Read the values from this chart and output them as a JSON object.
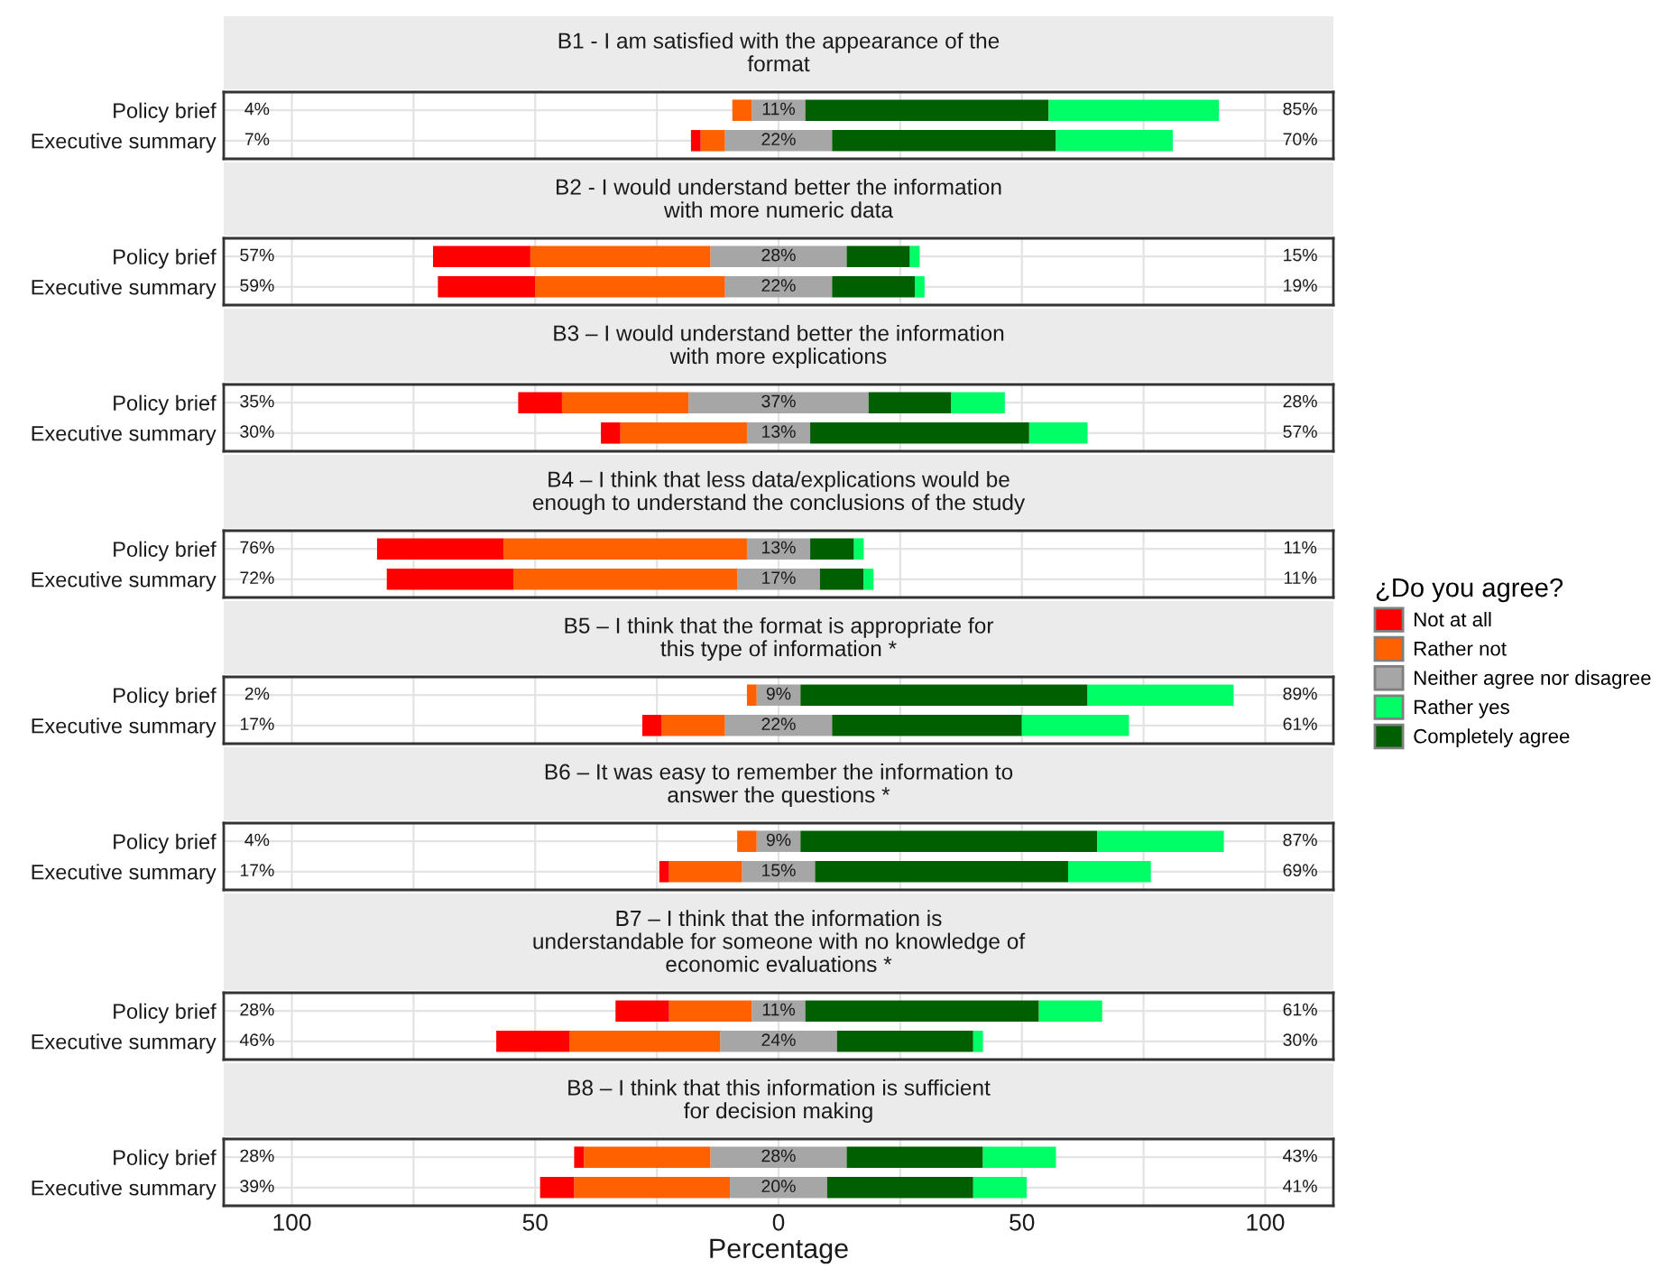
{
  "chart_data": [
    {
      "type": "bar",
      "orientation": "horizontal",
      "stacked": true,
      "title": "B1 - I am satisfied with the appearance of the\nformat",
      "categories": [
        "Policy brief",
        "Executive summary"
      ],
      "series": [
        {
          "color": "#a6a6a6",
          "values": [
            -5.5,
            -11
          ]
        },
        {
          "color": "#ff6000",
          "values": [
            -4,
            -5
          ]
        },
        {
          "color": "#ff0000",
          "values": [
            0,
            -2
          ]
        },
        {
          "color": "#a6a6a6",
          "values": [
            5.5,
            11
          ]
        },
        {
          "color": "#005f00",
          "values": [
            50,
            46
          ]
        },
        {
          "color": "#00ff66",
          "values": [
            35,
            24
          ]
        }
      ],
      "annotations": [
        "4%",
        "11%",
        "85%",
        "7%",
        "22%",
        "70%"
      ],
      "xlim": [
        -114,
        114
      ],
      "xticks": [
        -100,
        -75,
        -50,
        -25,
        0,
        25,
        50,
        75,
        100
      ],
      "tick_labels": "y",
      "grid": true
    },
    {
      "type": "bar",
      "orientation": "horizontal",
      "stacked": true,
      "title": "B2 - I would understand better the information\nwith more numeric data",
      "categories": [
        "Policy brief",
        "Executive summary"
      ],
      "series": [
        {
          "color": "#a6a6a6",
          "values": [
            -14,
            -11
          ]
        },
        {
          "color": "#ff6000",
          "values": [
            -37,
            -39
          ]
        },
        {
          "color": "#ff0000",
          "values": [
            -20,
            -20
          ]
        },
        {
          "color": "#a6a6a6",
          "values": [
            14,
            11
          ]
        },
        {
          "color": "#005f00",
          "values": [
            13,
            17
          ]
        },
        {
          "color": "#00ff66",
          "values": [
            2,
            2
          ]
        }
      ],
      "annotations": [
        "57%",
        "28%",
        "15%",
        "59%",
        "22%",
        "19%"
      ],
      "xlim": [
        -114,
        114
      ],
      "xticks": [
        -100,
        -75,
        -50,
        -25,
        0,
        25,
        50,
        75,
        100
      ],
      "tick_labels": "y",
      "grid": true
    },
    {
      "type": "bar",
      "orientation": "horizontal",
      "stacked": true,
      "title": "B3 – I would understand better the information\nwith more explications",
      "categories": [
        "Policy brief",
        "Executive summary"
      ],
      "series": [
        {
          "color": "#a6a6a6",
          "values": [
            -18.5,
            -6.5
          ]
        },
        {
          "color": "#ff6000",
          "values": [
            -26,
            -26
          ]
        },
        {
          "color": "#ff0000",
          "values": [
            -9,
            -4
          ]
        },
        {
          "color": "#a6a6a6",
          "values": [
            18.5,
            6.5
          ]
        },
        {
          "color": "#005f00",
          "values": [
            17,
            45
          ]
        },
        {
          "color": "#00ff66",
          "values": [
            11,
            12
          ]
        }
      ],
      "annotations": [
        "35%",
        "37%",
        "28%",
        "30%",
        "13%",
        "57%"
      ],
      "xlim": [
        -114,
        114
      ],
      "xticks": [
        -100,
        -75,
        -50,
        -25,
        0,
        25,
        50,
        75,
        100
      ],
      "tick_labels": "y",
      "grid": true
    },
    {
      "type": "bar",
      "orientation": "horizontal",
      "stacked": true,
      "title": "B4 – I think that less data/explications would be\nenough to understand the conclusions of the study",
      "categories": [
        "Policy brief",
        "Executive summary"
      ],
      "legend": "right",
      "legend_title": "¿Do you agree?",
      "series": [
        {
          "name": "Neither agree nor disagree",
          "color": "#a6a6a6",
          "values": [
            -6.5,
            -8.5
          ]
        },
        {
          "name": "Rather not",
          "color": "#ff6000",
          "values": [
            -50,
            -46
          ]
        },
        {
          "name": "Not at all",
          "color": "#ff0000",
          "values": [
            -26,
            -26
          ]
        },
        {
          "color": "#a6a6a6",
          "values": [
            6.5,
            8.5
          ]
        },
        {
          "name": "Completely agree",
          "color": "#005f00",
          "values": [
            9,
            9
          ]
        },
        {
          "name": "Rather yes",
          "color": "#00ff66",
          "values": [
            2,
            2
          ]
        }
      ],
      "annotations": [
        "76%",
        "13%",
        "11%",
        "72%",
        "17%",
        "11%"
      ],
      "xlim": [
        -114,
        114
      ],
      "xticks": [
        -100,
        -75,
        -50,
        -25,
        0,
        25,
        50,
        75,
        100
      ],
      "tick_labels": "y",
      "grid": true
    },
    {
      "type": "bar",
      "orientation": "horizontal",
      "stacked": true,
      "title": "B5 – I think that the format is appropriate for\nthis type of information *",
      "categories": [
        "Policy brief",
        "Executive summary"
      ],
      "series": [
        {
          "color": "#a6a6a6",
          "values": [
            -4.5,
            -11
          ]
        },
        {
          "color": "#ff6000",
          "values": [
            -2,
            -13
          ]
        },
        {
          "color": "#ff0000",
          "values": [
            0,
            -4
          ]
        },
        {
          "color": "#a6a6a6",
          "values": [
            4.5,
            11
          ]
        },
        {
          "color": "#005f00",
          "values": [
            59,
            39
          ]
        },
        {
          "color": "#00ff66",
          "values": [
            30,
            22
          ]
        }
      ],
      "annotations": [
        "2%",
        "9%",
        "89%",
        "17%",
        "22%",
        "61%"
      ],
      "xlim": [
        -114,
        114
      ],
      "xticks": [
        -100,
        -75,
        -50,
        -25,
        0,
        25,
        50,
        75,
        100
      ],
      "tick_labels": "y",
      "grid": true
    },
    {
      "type": "bar",
      "orientation": "horizontal",
      "stacked": true,
      "title": "B6 – It was easy to remember the information to\nanswer the questions *",
      "categories": [
        "Policy brief",
        "Executive summary"
      ],
      "series": [
        {
          "color": "#a6a6a6",
          "values": [
            -4.5,
            -7.5
          ]
        },
        {
          "color": "#ff6000",
          "values": [
            -4,
            -15
          ]
        },
        {
          "color": "#ff0000",
          "values": [
            0,
            -2
          ]
        },
        {
          "color": "#a6a6a6",
          "values": [
            4.5,
            7.5
          ]
        },
        {
          "color": "#005f00",
          "values": [
            61,
            52
          ]
        },
        {
          "color": "#00ff66",
          "values": [
            26,
            17
          ]
        }
      ],
      "annotations": [
        "4%",
        "9%",
        "87%",
        "17%",
        "15%",
        "69%"
      ],
      "xlim": [
        -114,
        114
      ],
      "xticks": [
        -100,
        -75,
        -50,
        -25,
        0,
        25,
        50,
        75,
        100
      ],
      "tick_labels": "y",
      "grid": true
    },
    {
      "type": "bar",
      "orientation": "horizontal",
      "stacked": true,
      "title": "B7 – I think that the information is\nunderstandable for someone with no knowledge of\neconomic evaluations *",
      "categories": [
        "Policy brief",
        "Executive summary"
      ],
      "series": [
        {
          "color": "#a6a6a6",
          "values": [
            -5.5,
            -12
          ]
        },
        {
          "color": "#ff6000",
          "values": [
            -17,
            -31
          ]
        },
        {
          "color": "#ff0000",
          "values": [
            -11,
            -15
          ]
        },
        {
          "color": "#a6a6a6",
          "values": [
            5.5,
            12
          ]
        },
        {
          "color": "#005f00",
          "values": [
            48,
            28
          ]
        },
        {
          "color": "#00ff66",
          "values": [
            13,
            2
          ]
        }
      ],
      "annotations": [
        "28%",
        "11%",
        "61%",
        "46%",
        "24%",
        "30%"
      ],
      "xlim": [
        -114,
        114
      ],
      "xticks": [
        -100,
        -75,
        -50,
        -25,
        0,
        25,
        50,
        75,
        100
      ],
      "tick_labels": "y",
      "grid": true
    },
    {
      "type": "bar",
      "orientation": "horizontal",
      "stacked": true,
      "title": "B8 – I think that this information is sufficient\nfor decision making",
      "xlabel": "Percentage",
      "categories": [
        "Policy brief",
        "Executive summary"
      ],
      "series": [
        {
          "color": "#a6a6a6",
          "values": [
            -14,
            -10
          ]
        },
        {
          "color": "#ff6000",
          "values": [
            -26,
            -32
          ]
        },
        {
          "color": "#ff0000",
          "values": [
            -2,
            -7
          ]
        },
        {
          "color": "#a6a6a6",
          "values": [
            14,
            10
          ]
        },
        {
          "color": "#005f00",
          "values": [
            28,
            30
          ]
        },
        {
          "color": "#00ff66",
          "values": [
            15,
            11
          ]
        }
      ],
      "annotations": [
        "28%",
        "28%",
        "43%",
        "39%",
        "20%",
        "41%"
      ],
      "xlim": [
        -114,
        114
      ],
      "xticks": [
        {
          "value": -100,
          "label": "100"
        },
        {
          "value": -75,
          "label": null
        },
        {
          "value": -50,
          "label": "50"
        },
        {
          "value": -25,
          "label": null
        },
        0,
        {
          "value": 25,
          "label": null
        },
        50,
        {
          "value": 75,
          "label": null
        },
        100
      ],
      "grid": true
    }
  ]
}
